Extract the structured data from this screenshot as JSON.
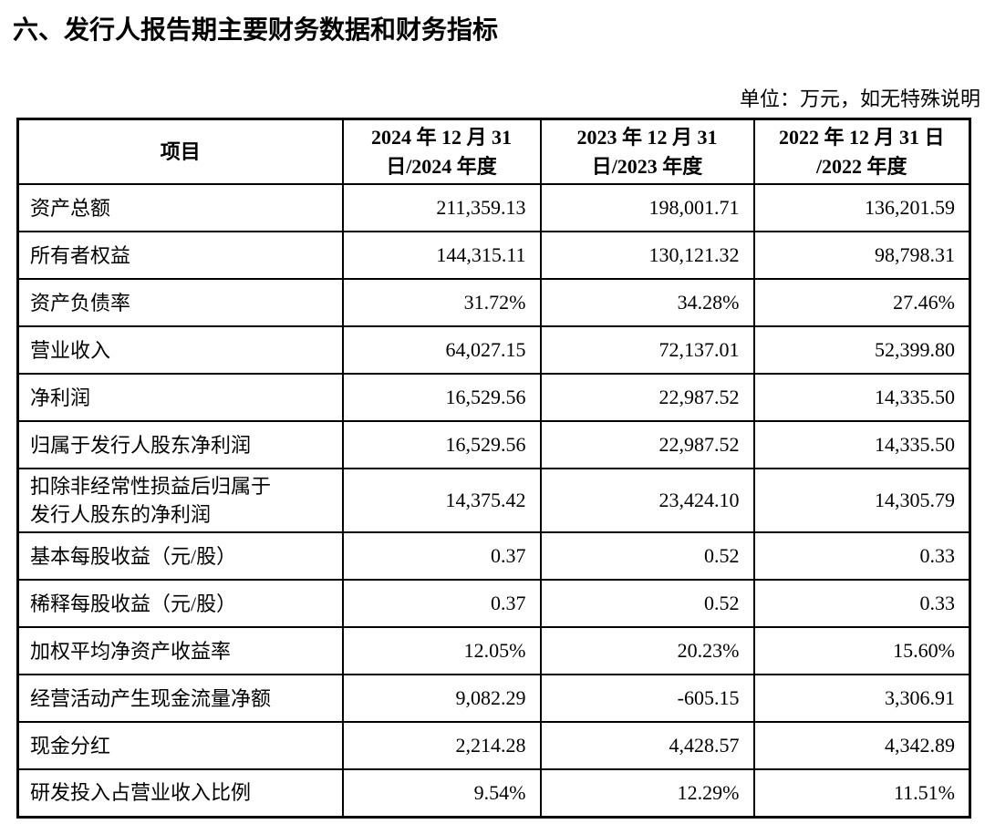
{
  "page": {
    "title": "六、发行人报告期主要财务数据和财务指标",
    "unit_note": "单位：万元，如无特殊说明"
  },
  "table": {
    "header": {
      "item": "项目",
      "col_2024": "2024 年 12 月 31\n日/2024 年度",
      "col_2023": "2023 年 12 月 31\n日/2023 年度",
      "col_2022": "2022 年 12 月 31 日\n/2022 年度"
    },
    "rows": [
      {
        "label": "资产总额",
        "v2024": "211,359.13",
        "v2023": "198,001.71",
        "v2022": "136,201.59"
      },
      {
        "label": "所有者权益",
        "v2024": "144,315.11",
        "v2023": "130,121.32",
        "v2022": "98,798.31"
      },
      {
        "label": "资产负债率",
        "v2024": "31.72%",
        "v2023": "34.28%",
        "v2022": "27.46%"
      },
      {
        "label": "营业收入",
        "v2024": "64,027.15",
        "v2023": "72,137.01",
        "v2022": "52,399.80"
      },
      {
        "label": "净利润",
        "v2024": "16,529.56",
        "v2023": "22,987.52",
        "v2022": "14,335.50"
      },
      {
        "label": "归属于发行人股东净利润",
        "v2024": "16,529.56",
        "v2023": "22,987.52",
        "v2022": "14,335.50"
      },
      {
        "label": "扣除非经常性损益后归属于\n发行人股东的净利润",
        "v2024": "14,375.42",
        "v2023": "23,424.10",
        "v2022": "14,305.79"
      },
      {
        "label": "基本每股收益（元/股）",
        "v2024": "0.37",
        "v2023": "0.52",
        "v2022": "0.33"
      },
      {
        "label": "稀释每股收益（元/股）",
        "v2024": "0.37",
        "v2023": "0.52",
        "v2022": "0.33"
      },
      {
        "label": "加权平均净资产收益率",
        "v2024": "12.05%",
        "v2023": "20.23%",
        "v2022": "15.60%"
      },
      {
        "label": "经营活动产生现金流量净额",
        "v2024": "9,082.29",
        "v2023": "-605.15",
        "v2022": "3,306.91"
      },
      {
        "label": "现金分红",
        "v2024": "2,214.28",
        "v2023": "4,428.57",
        "v2022": "4,342.89"
      },
      {
        "label": "研发投入占营业收入比例",
        "v2024": "9.54%",
        "v2023": "12.29%",
        "v2022": "11.51%"
      }
    ]
  }
}
